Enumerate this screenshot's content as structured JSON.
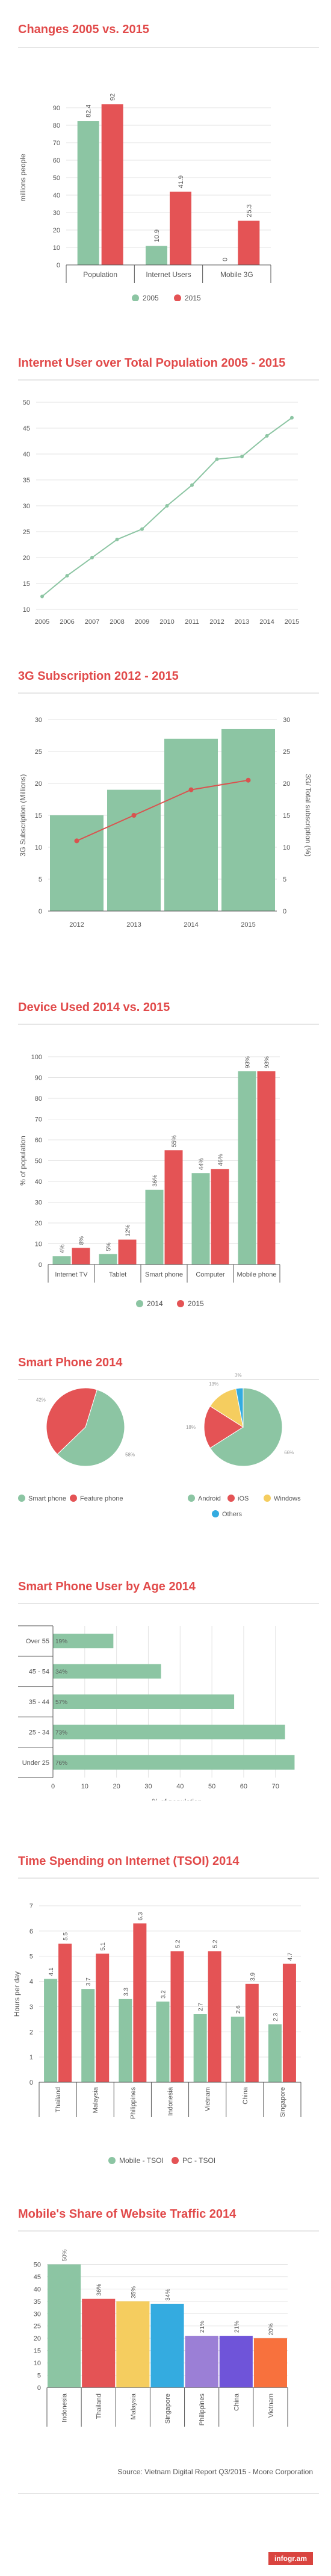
{
  "colors": {
    "green": "#8cc5a3",
    "red": "#e45355",
    "blue": "#34abe0",
    "yellow": "#f5cd5f",
    "purple": "#9b7fd6",
    "violet": "#6f54d9",
    "orange": "#f8713d",
    "title": "#e14a4a",
    "grid": "#e3e3e3",
    "axis": "#555555"
  },
  "charts": [
    {
      "title": "Changes 2005 vs. 2015",
      "chart_data": {
        "type": "bar",
        "categories": [
          "Population",
          "Internet Users",
          "Mobile 3G"
        ],
        "series": [
          {
            "name": "2005",
            "values": [
              82.4,
              10.9,
              0
            ]
          },
          {
            "name": "2015",
            "values": [
              92,
              41.9,
              25.3
            ]
          }
        ],
        "value_labels": [
          [
            "82.4",
            "10.9",
            "0"
          ],
          [
            "92",
            "41.9",
            "25.3"
          ]
        ],
        "ylabel": "millions people",
        "ylim": [
          0,
          100
        ],
        "yticks": [
          "0",
          "10",
          "20",
          "30",
          "40",
          "50",
          "60",
          "70",
          "80",
          "90"
        ],
        "legend": "bottom"
      }
    },
    {
      "title": "Internet User over Total Population 2005 - 2015",
      "chart_data": {
        "type": "line",
        "x": [
          "2005",
          "2006",
          "2007",
          "2008",
          "2009",
          "2010",
          "2011",
          "2012",
          "2013",
          "2014",
          "2015"
        ],
        "values": [
          12.5,
          16.5,
          20,
          23.5,
          25.5,
          30,
          34,
          39,
          39.5,
          43.5,
          47
        ],
        "ylim": [
          10,
          50
        ],
        "yticks": [
          "10",
          "15",
          "20",
          "25",
          "30",
          "35",
          "40",
          "45",
          "50"
        ],
        "legend": "bottom"
      }
    },
    {
      "title": "3G Subscription 2012 - 2015",
      "chart_data": {
        "type": "bar",
        "categories": [
          "2012",
          "2013",
          "2014",
          "2015"
        ],
        "bars": [
          15,
          19,
          27,
          28.5
        ],
        "line": [
          11,
          15,
          19,
          20.5
        ],
        "ylabel": "3G Subscription (Millions)",
        "y2label": "3G/ Total subscription (%)",
        "ylim": [
          0,
          30
        ],
        "yticks": [
          "0",
          "5",
          "10",
          "15",
          "20",
          "25",
          "30"
        ]
      }
    },
    {
      "title": "Device Used 2014 vs. 2015",
      "chart_data": {
        "type": "bar",
        "categories": [
          "Internet TV",
          "Tablet",
          "Smart phone",
          "Computer",
          "Mobile phone"
        ],
        "series": [
          {
            "name": "2014",
            "values": [
              4,
              5,
              36,
              44,
              93
            ]
          },
          {
            "name": "2015",
            "values": [
              8,
              12,
              55,
              46,
              93
            ]
          }
        ],
        "value_labels": [
          [
            "4%",
            "5%",
            "36%",
            "44%",
            "93%"
          ],
          [
            "8%",
            "12%",
            "55%",
            "46%",
            "93%"
          ]
        ],
        "ylabel": "% of population",
        "ylim": [
          0,
          100
        ],
        "yticks": [
          "0",
          "10",
          "20",
          "30",
          "40",
          "50",
          "60",
          "70",
          "80",
          "90",
          "100"
        ],
        "legend": "bottom"
      }
    },
    {
      "title": "Smart Phone 2014",
      "chart_data": [
        {
          "type": "pie",
          "slices": [
            {
              "name": "Smart phone",
              "value": 58
            },
            {
              "name": "Feature phone",
              "value": 42
            }
          ],
          "labels": [
            "58%",
            "42%"
          ]
        },
        {
          "type": "pie",
          "slices": [
            {
              "name": "Android",
              "value": 66
            },
            {
              "name": "iOS",
              "value": 18
            },
            {
              "name": "Windows",
              "value": 13
            },
            {
              "name": "Others",
              "value": 3
            }
          ],
          "labels": [
            "66%",
            "18%",
            "13%",
            "3%"
          ]
        }
      ]
    },
    {
      "title": "Smart Phone User by Age 2014",
      "chart_data": {
        "type": "bar",
        "orientation": "horizontal",
        "categories": [
          "Over 55",
          "45 - 54",
          "35 - 44",
          "25 - 34",
          "Under 25"
        ],
        "values": [
          19,
          34,
          57,
          73,
          76
        ],
        "value_labels": [
          "19%",
          "34%",
          "57%",
          "73%",
          "76%"
        ],
        "xlabel": "% of population",
        "xlim": [
          0,
          78
        ],
        "xticks": [
          "0",
          "10",
          "20",
          "30",
          "40",
          "50",
          "60",
          "70"
        ]
      }
    },
    {
      "title": "Time Spending on Internet (TSOI) 2014",
      "chart_data": {
        "type": "bar",
        "categories": [
          "Thailand",
          "Malaysia",
          "Philippines",
          "Indonesia",
          "Vietnam",
          "China",
          "Singapore"
        ],
        "series": [
          {
            "name": "Mobile - TSOI",
            "values": [
              4.1,
              3.7,
              3.3,
              3.2,
              2.7,
              2.6,
              2.3
            ]
          },
          {
            "name": "PC - TSOI",
            "values": [
              5.5,
              5.1,
              6.3,
              5.2,
              5.2,
              3.9,
              4.7
            ]
          }
        ],
        "value_labels": [
          [
            "4.1",
            "3.7",
            "3.3",
            "3.2",
            "2.7",
            "2.6",
            "2.3"
          ],
          [
            "5.5",
            "5.1",
            "6.3",
            "5.2",
            "5.2",
            "3.9",
            "4.7"
          ]
        ],
        "ylabel": "Hours per day",
        "ylim": [
          0,
          7
        ],
        "yticks": [
          "0",
          "1",
          "2",
          "3",
          "4",
          "5",
          "6",
          "7"
        ],
        "legend": "bottom"
      }
    },
    {
      "title": "Mobile's Share of Website Traffic 2014",
      "chart_data": {
        "type": "bar",
        "categories": [
          "Indonesia",
          "Thailand",
          "Malaysia",
          "Singapore",
          "Philippines",
          "China",
          "Vietnam"
        ],
        "values": [
          50,
          36,
          35,
          34,
          21,
          21,
          20
        ],
        "value_labels": [
          "50%",
          "36%",
          "35%",
          "34%",
          "21%",
          "21%",
          "20%"
        ],
        "colors": [
          "#8cc5a3",
          "#e45355",
          "#f5cd5f",
          "#34abe0",
          "#9b7fd6",
          "#6f54d9",
          "#f8713d"
        ],
        "ylim": [
          0,
          55
        ],
        "yticks": [
          "0",
          "5",
          "10",
          "15",
          "20",
          "25",
          "30",
          "35",
          "40",
          "45",
          "50"
        ]
      }
    }
  ],
  "footer": {
    "source": "Source: Vietnam Digital Report Q3/2015 - Moore Corporation",
    "brand": "infogr.am"
  }
}
